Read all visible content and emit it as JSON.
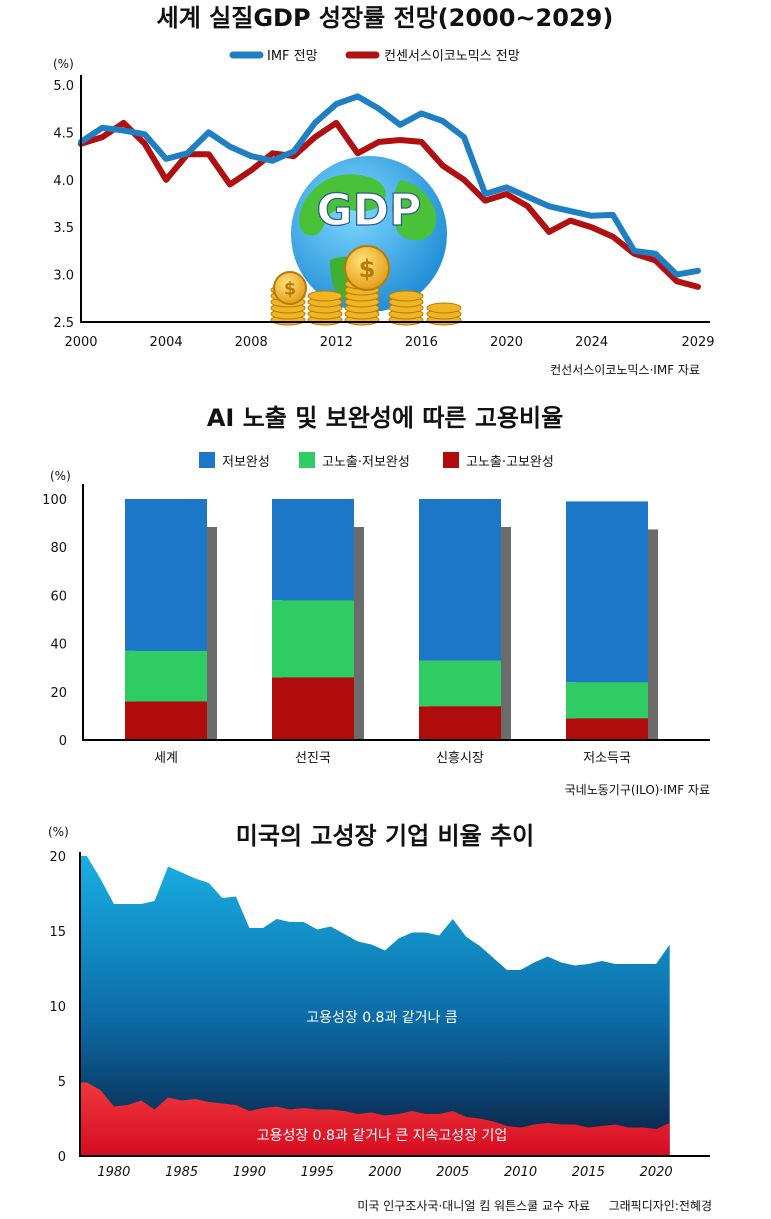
{
  "chart_data": [
    {
      "type": "line",
      "title": "세계 실질GDP 성장률 전망(2000~2029)",
      "unit": "(%)",
      "ylim": [
        2.5,
        5.0
      ],
      "y_ticks": [
        "2.5",
        "3.0",
        "3.5",
        "4.0",
        "4.5",
        "5.0"
      ],
      "x_ticks": [
        "2000",
        "2004",
        "2008",
        "2012",
        "2016",
        "2020",
        "2024",
        "2029"
      ],
      "xlim": [
        2000,
        2029
      ],
      "center_graphic_text": "GDP",
      "source": "컨선서스이코노믹스·IMF 자료",
      "series": [
        {
          "name": "IMF 전망",
          "color": "#1f7fc4",
          "x": [
            2000,
            2001,
            2002,
            2003,
            2004,
            2005,
            2006,
            2007,
            2008,
            2009,
            2010,
            2011,
            2012,
            2013,
            2014,
            2015,
            2016,
            2017,
            2018,
            2019,
            2020,
            2021,
            2022,
            2023,
            2024,
            2025,
            2026,
            2027,
            2028,
            2029
          ],
          "values": [
            4.4,
            4.55,
            4.52,
            4.48,
            4.22,
            4.28,
            4.5,
            4.35,
            4.25,
            4.2,
            4.3,
            4.6,
            4.8,
            4.88,
            4.75,
            4.58,
            4.7,
            4.62,
            4.45,
            3.85,
            3.92,
            3.82,
            3.72,
            3.67,
            3.62,
            3.63,
            3.25,
            3.22,
            3.0,
            3.04
          ]
        },
        {
          "name": "컨센서스이코노믹스 전망",
          "color": "#b01010",
          "x": [
            2000,
            2001,
            2002,
            2003,
            2004,
            2005,
            2006,
            2007,
            2008,
            2009,
            2010,
            2011,
            2012,
            2013,
            2014,
            2015,
            2016,
            2017,
            2018,
            2019,
            2020,
            2021,
            2022,
            2023,
            2024,
            2025,
            2026,
            2027,
            2028,
            2029
          ],
          "values": [
            4.38,
            4.45,
            4.6,
            4.38,
            4.0,
            4.27,
            4.27,
            3.95,
            4.1,
            4.28,
            4.25,
            4.45,
            4.6,
            4.28,
            4.4,
            4.42,
            4.4,
            4.15,
            4.0,
            3.78,
            3.85,
            3.72,
            3.45,
            3.57,
            3.5,
            3.4,
            3.22,
            3.15,
            2.93,
            2.87
          ]
        }
      ]
    },
    {
      "type": "bar",
      "stacked": true,
      "title": "AI  노출 및 보완성에 따른 고용비율",
      "unit": "(%)",
      "ylim": [
        0,
        100
      ],
      "y_ticks": [
        "0",
        "20",
        "40",
        "60",
        "80",
        "100"
      ],
      "categories": [
        "세계",
        "선진국",
        "신흥시장",
        "저소득국"
      ],
      "source": "국네노동기구(ILO)·IMF 자료",
      "series": [
        {
          "name": "고노출·고보완성",
          "color": "#b00c0c",
          "values": [
            16,
            26,
            14,
            9
          ]
        },
        {
          "name": "고노출·저보완성",
          "color": "#2fcc63",
          "values": [
            21,
            32,
            19,
            15
          ]
        },
        {
          "name": "저보완성",
          "color": "#1c77c8",
          "values": [
            63,
            42,
            67,
            75
          ]
        }
      ]
    },
    {
      "type": "area",
      "title": "미국의 고성장 기업 비율 추이",
      "unit": "(%)",
      "ylim": [
        0,
        20
      ],
      "y_ticks": [
        "0",
        "5",
        "10",
        "15",
        "20"
      ],
      "x_ticks": [
        "1980",
        "1985",
        "1990",
        "1995",
        "2000",
        "2005",
        "2010",
        "2015",
        "2020"
      ],
      "xlim": [
        1977.5,
        2022.5
      ],
      "source": "미국 인구조사국·대니얼 킴 워튼스쿨 교수 자료",
      "credit": "그래픽디자인:전혜경",
      "series": [
        {
          "name": "고용성장 0.8과 같거나 큼",
          "x": [
            1978,
            1979,
            1980,
            1981,
            1982,
            1983,
            1984,
            1985,
            1986,
            1987,
            1988,
            1989,
            1990,
            1991,
            1992,
            1993,
            1994,
            1995,
            1996,
            1997,
            1998,
            1999,
            2000,
            2001,
            2002,
            2003,
            2004,
            2005,
            2006,
            2007,
            2008,
            2009,
            2010,
            2011,
            2012,
            2013,
            2014,
            2015,
            2016,
            2017,
            2018,
            2019,
            2020,
            2021
          ],
          "values": [
            20.0,
            18.5,
            16.8,
            16.8,
            16.8,
            17.0,
            19.3,
            18.9,
            18.5,
            18.2,
            17.2,
            17.3,
            15.2,
            15.2,
            15.8,
            15.6,
            15.6,
            15.1,
            15.3,
            14.8,
            14.3,
            14.1,
            13.7,
            14.5,
            14.9,
            14.9,
            14.7,
            15.8,
            14.6,
            14.0,
            13.2,
            12.4,
            12.4,
            12.9,
            13.3,
            12.9,
            12.7,
            12.8,
            13.0,
            12.8,
            12.8,
            12.8,
            12.8,
            14.1
          ]
        },
        {
          "name": "고용성장 0.8과 같거나 큰 지속고성장 기업",
          "x": [
            1978,
            1979,
            1980,
            1981,
            1982,
            1983,
            1984,
            1985,
            1986,
            1987,
            1988,
            1989,
            1990,
            1991,
            1992,
            1993,
            1994,
            1995,
            1996,
            1997,
            1998,
            1999,
            2000,
            2001,
            2002,
            2003,
            2004,
            2005,
            2006,
            2007,
            2008,
            2009,
            2010,
            2011,
            2012,
            2013,
            2014,
            2015,
            2016,
            2017,
            2018,
            2019,
            2020,
            2021
          ],
          "values": [
            4.9,
            4.4,
            3.3,
            3.4,
            3.7,
            3.1,
            3.9,
            3.7,
            3.8,
            3.6,
            3.5,
            3.4,
            3.0,
            3.2,
            3.3,
            3.1,
            3.2,
            3.1,
            3.1,
            3.0,
            2.8,
            2.9,
            2.7,
            2.8,
            3.0,
            2.8,
            2.8,
            3.0,
            2.6,
            2.5,
            2.3,
            2.0,
            1.9,
            2.1,
            2.2,
            2.1,
            2.1,
            1.9,
            2.0,
            2.1,
            1.9,
            1.9,
            1.8,
            2.2
          ]
        }
      ]
    }
  ]
}
